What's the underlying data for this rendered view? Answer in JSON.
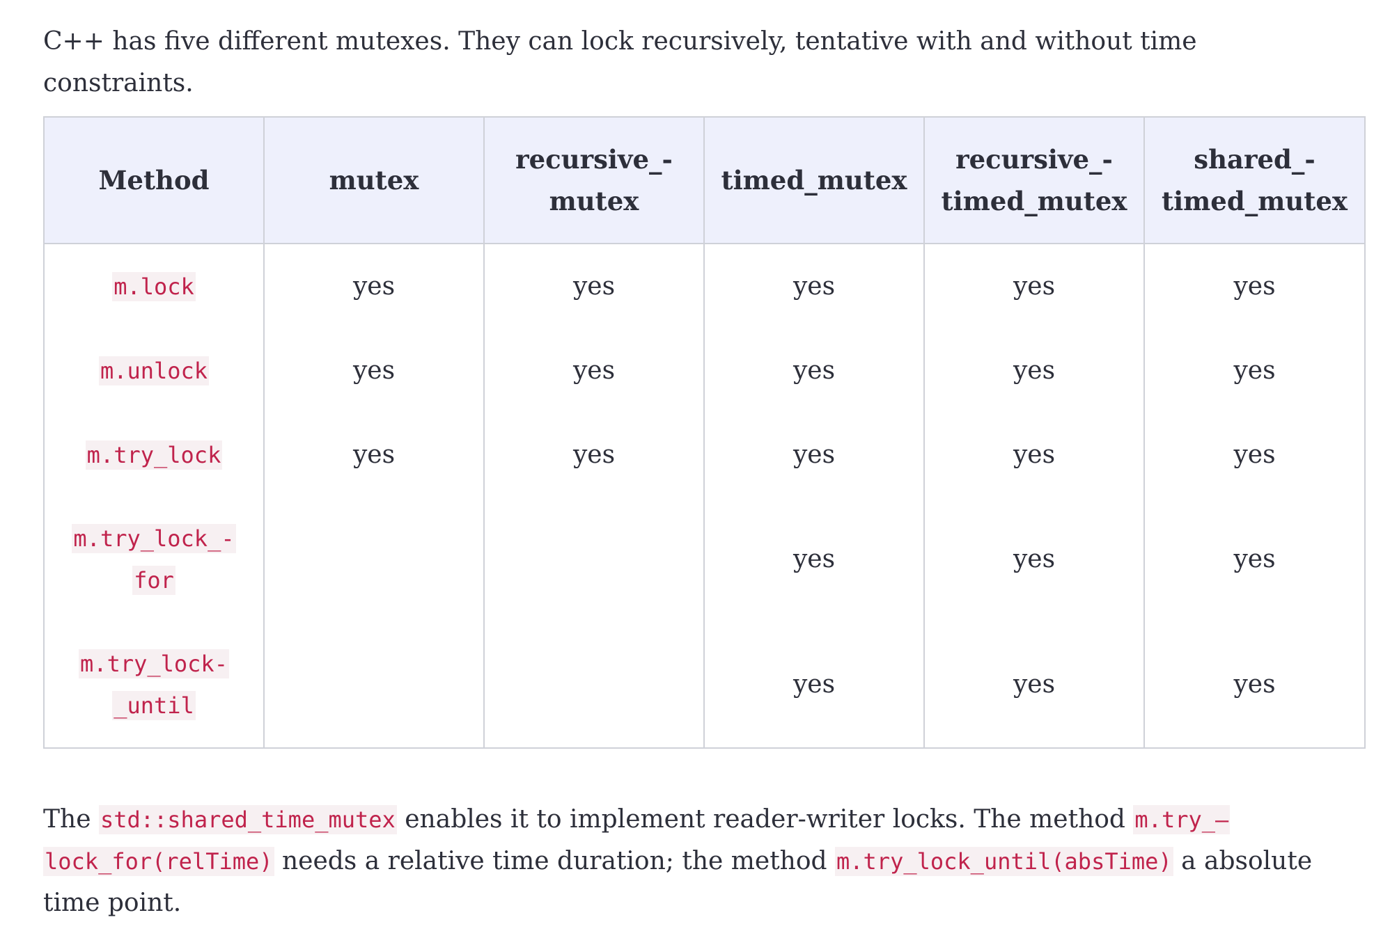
{
  "intro": "C++ has five different mutexes. They can lock recursively, tentative with and without time constraints.",
  "table": {
    "headers": {
      "method": "Method",
      "mutex": "mutex",
      "recursive_mutex_line1": "recursive_-",
      "recursive_mutex_line2": "mutex",
      "timed_mutex": "timed_mutex",
      "recursive_timed_mutex_line1": "recursive_-",
      "recursive_timed_mutex_line2": "timed_mutex",
      "shared_timed_mutex_line1": "shared_-",
      "shared_timed_mutex_line2": "timed_mutex"
    },
    "rows": [
      {
        "method_line1": "m.lock",
        "method_line2": "",
        "mutex": "yes",
        "recursive_mutex": "yes",
        "timed_mutex": "yes",
        "recursive_timed_mutex": "yes",
        "shared_timed_mutex": "yes"
      },
      {
        "method_line1": "m.unlock",
        "method_line2": "",
        "mutex": "yes",
        "recursive_mutex": "yes",
        "timed_mutex": "yes",
        "recursive_timed_mutex": "yes",
        "shared_timed_mutex": "yes"
      },
      {
        "method_line1": "m.try_lock",
        "method_line2": "",
        "mutex": "yes",
        "recursive_mutex": "yes",
        "timed_mutex": "yes",
        "recursive_timed_mutex": "yes",
        "shared_timed_mutex": "yes"
      },
      {
        "method_line1": "m.try_lock_-",
        "method_line2": "for",
        "mutex": "",
        "recursive_mutex": "",
        "timed_mutex": "yes",
        "recursive_timed_mutex": "yes",
        "shared_timed_mutex": "yes"
      },
      {
        "method_line1": "m.try_lock-",
        "method_line2": "_until",
        "mutex": "",
        "recursive_mutex": "",
        "timed_mutex": "yes",
        "recursive_timed_mutex": "yes",
        "shared_timed_mutex": "yes"
      }
    ]
  },
  "outro": {
    "t1": "The ",
    "c1": "std::shared_time_mutex",
    "t2": " enables it to implement reader-writer locks. The method ",
    "c2a": "m.try_–",
    "c2b": "lock_for(relTime)",
    "t3": " needs a relative time duration; the method ",
    "c3": "m.try_lock_until(absTime)",
    "t4": " a absolute time point."
  }
}
